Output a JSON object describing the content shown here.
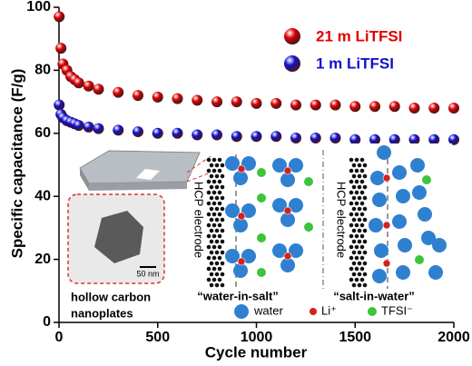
{
  "chart_data": {
    "type": "scatter",
    "xlabel": "Cycle number",
    "ylabel": "Specific capacitance (F/g)",
    "xlim": [
      0,
      2000
    ],
    "xticks": [
      0,
      500,
      1000,
      1500,
      2000
    ],
    "ylim": [
      0,
      100
    ],
    "yticks": [
      0,
      20,
      40,
      60,
      80,
      100
    ],
    "legend": "upper right",
    "x": [
      1,
      10,
      20,
      40,
      60,
      80,
      100,
      150,
      200,
      300,
      400,
      500,
      600,
      700,
      800,
      900,
      1000,
      1100,
      1200,
      1300,
      1400,
      1500,
      1600,
      1700,
      1800,
      1900,
      2000
    ],
    "series": [
      {
        "name": "21 m LiTFSI",
        "color": "#e00000",
        "values": [
          97,
          87,
          82,
          80,
          78,
          77,
          76,
          75,
          74,
          73,
          72,
          71.5,
          71,
          70.5,
          70,
          70,
          69.5,
          69.5,
          69,
          69,
          69,
          68.5,
          68.5,
          68.5,
          68,
          68,
          68
        ]
      },
      {
        "name": "1 m LiTFSI",
        "color": "#1010d0",
        "values": [
          69,
          66,
          65,
          64,
          63.5,
          63,
          62.5,
          62,
          61.5,
          61,
          60.5,
          60,
          60,
          59.5,
          59.5,
          59,
          59,
          59,
          58.5,
          58.5,
          58.5,
          58,
          58,
          58,
          58,
          58,
          58
        ]
      }
    ],
    "inset": {
      "scale_bar": "50 nm",
      "caption": [
        "hollow carbon",
        "nanoplates"
      ],
      "electrode_labels": [
        "HCP electrode",
        "HCP electrode"
      ],
      "panels": [
        "“water-in-salt”",
        "“salt-in-water”"
      ],
      "key": [
        "water",
        "Li⁺",
        "TFSI⁻"
      ]
    }
  }
}
